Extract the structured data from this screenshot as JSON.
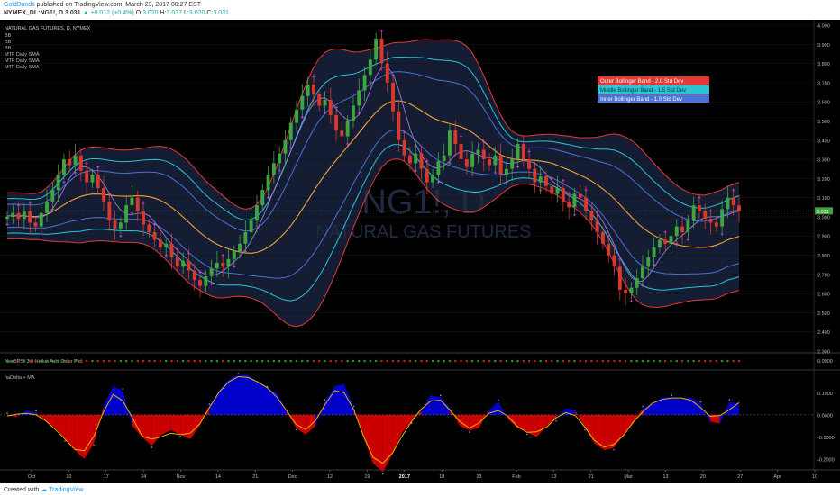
{
  "header": {
    "author": "GoldBands",
    "published": "published on TradingView.com, March 23, 2017 00:27 EST",
    "symbol": "NYMEX_DL:NG1!, D",
    "last": "3.031",
    "change": "+0.012 (+0.4%)",
    "ohlc": [
      {
        "k": "O:",
        "v": "3.020"
      },
      {
        "k": "H:",
        "v": "3.037"
      },
      {
        "k": "L:",
        "v": "3.020"
      },
      {
        "k": "C:",
        "v": "3.031"
      }
    ]
  },
  "footer": {
    "created": "Created with",
    "brand": "TradingView"
  },
  "colors": {
    "background": "#000000",
    "up": "#3fa53f",
    "down": "#d9382c",
    "outer_band": "#e53935",
    "middle_band": "#2bc3d6",
    "inner_band": "#4a72d8",
    "sma": "#f2a13a",
    "ha_pos": "#0000cc",
    "ha_neg": "#cc0000",
    "ha_line": "#e6b400",
    "marker": "#cc44cc"
  },
  "chart_data": [
    {
      "type": "candlestick",
      "title": "NATURAL GAS FUTURES, D, NYMEX",
      "watermark": [
        "NG1!, D",
        "NATURAL GAS FUTURES"
      ],
      "indicators": [
        "BB",
        "BB",
        "BB",
        "MTF Daily SMA",
        "MTF Daily SMA",
        "MTF Daily SMA"
      ],
      "legend": {
        "placement": "top-right",
        "entries": [
          {
            "label": "Outer Bollinger Band - 2.0 Std Dev",
            "color": "#e53935"
          },
          {
            "label": "Middle Bollinger Band - 1.5 Std Dev",
            "color": "#2bc3d6"
          },
          {
            "label": "Inner Bollinger Band - 1.0 Std Dev",
            "color": "#4a72d8"
          }
        ]
      },
      "ylim": [
        2.3,
        4.0
      ],
      "y_ticks": [
        "4.000",
        "3.900",
        "3.800",
        "3.700",
        "3.600",
        "3.500",
        "3.400",
        "3.300",
        "3.200",
        "3.100",
        "3.000",
        "2.900",
        "2.800",
        "2.700",
        "2.600",
        "2.500",
        "2.400",
        "2.300"
      ],
      "last_price_label": "3.031",
      "x_ticks": [
        "Oct",
        "10",
        "17",
        "24",
        "Nov",
        "14",
        "21",
        "Dec",
        "12",
        "19",
        "2017",
        "18",
        "23",
        "Feb",
        "13",
        "21",
        "Mar",
        "13",
        "20",
        "27",
        "Apr",
        "10"
      ],
      "closes": [
        3.0,
        3.02,
        2.99,
        3.03,
        2.97,
        2.95,
        3.02,
        3.08,
        3.14,
        3.22,
        3.3,
        3.27,
        3.32,
        3.24,
        3.18,
        3.22,
        3.15,
        3.08,
        2.98,
        2.94,
        2.97,
        3.06,
        3.1,
        3.03,
        2.96,
        2.92,
        2.88,
        2.84,
        2.86,
        2.79,
        2.74,
        2.77,
        2.72,
        2.67,
        2.64,
        2.69,
        2.73,
        2.76,
        2.74,
        2.78,
        2.82,
        2.86,
        2.92,
        2.98,
        3.06,
        3.14,
        3.22,
        3.28,
        3.33,
        3.4,
        3.49,
        3.56,
        3.63,
        3.69,
        3.64,
        3.58,
        3.61,
        3.53,
        3.45,
        3.42,
        3.5,
        3.58,
        3.66,
        3.74,
        3.82,
        3.93,
        3.8,
        3.7,
        3.55,
        3.4,
        3.32,
        3.28,
        3.33,
        3.25,
        3.18,
        3.22,
        3.29,
        3.32,
        3.45,
        3.38,
        3.3,
        3.26,
        3.33,
        3.35,
        3.3,
        3.27,
        3.32,
        3.22,
        3.25,
        3.3,
        3.38,
        3.3,
        3.25,
        3.18,
        3.21,
        3.16,
        3.12,
        3.15,
        3.08,
        3.05,
        3.12,
        3.1,
        3.03,
        2.98,
        2.92,
        2.86,
        2.8,
        2.74,
        2.62,
        2.6,
        2.63,
        2.68,
        2.74,
        2.79,
        2.84,
        2.88,
        2.86,
        2.9,
        2.95,
        2.92,
        2.98,
        3.06,
        3.03,
        2.99,
        2.97,
        2.95,
        3.04,
        3.1,
        3.06,
        3.031
      ],
      "sma_range": [
        2.67,
        3.67
      ],
      "marker_offset": 0.04
    },
    {
      "type": "dots",
      "title": "NeoBRSI 3.0 Heikin Ashi Color Plot",
      "value_label": "0.0000",
      "pattern": "red before 2017, green through late Jan, red mid Feb, mixed in March"
    },
    {
      "type": "area",
      "title": "haDelta + MA",
      "ylim": [
        -0.25,
        0.2
      ],
      "y_ticks": [
        "0.1000",
        "0.0000",
        "-0.1000",
        "-0.2000"
      ],
      "values": [
        0.0,
        -0.01,
        0.02,
        0.01,
        -0.03,
        -0.06,
        -0.11,
        -0.16,
        -0.2,
        -0.13,
        0.04,
        0.13,
        0.11,
        -0.05,
        -0.1,
        -0.14,
        -0.09,
        -0.07,
        -0.09,
        -0.11,
        -0.05,
        0.04,
        0.11,
        0.16,
        0.18,
        0.18,
        0.15,
        0.12,
        0.1,
        0.02,
        -0.06,
        -0.09,
        -0.05,
        0.06,
        0.13,
        0.14,
        0.03,
        -0.1,
        -0.22,
        -0.26,
        -0.18,
        -0.08,
        -0.03,
        0.02,
        0.09,
        0.08,
        0.03,
        -0.05,
        -0.07,
        -0.06,
        0.02,
        0.06,
        -0.02,
        -0.06,
        -0.08,
        -0.1,
        -0.05,
        -0.02,
        0.03,
        0.02,
        -0.06,
        -0.13,
        -0.16,
        -0.15,
        -0.09,
        -0.04,
        0.03,
        0.05,
        0.08,
        0.08,
        0.07,
        0.08,
        0.05,
        -0.03,
        -0.04,
        0.06,
        0.05
      ],
      "ma_label": "haDelta MA"
    }
  ]
}
